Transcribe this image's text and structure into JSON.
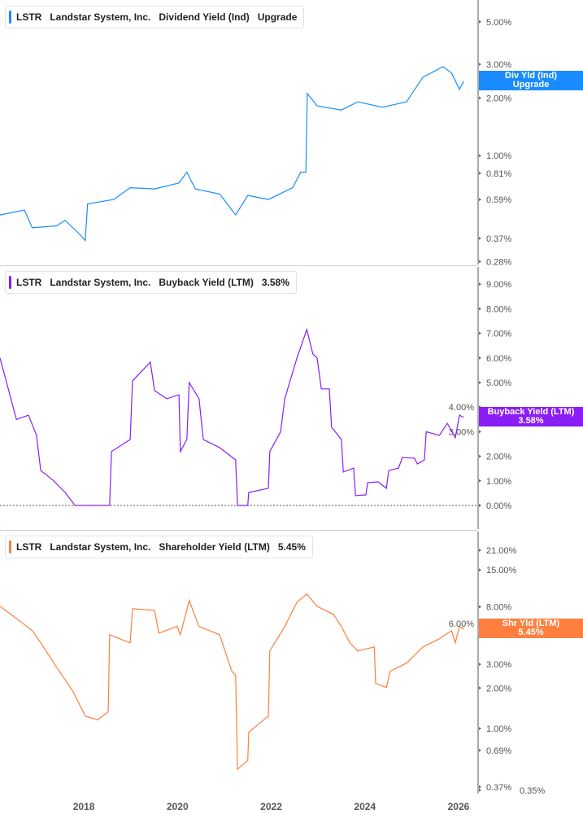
{
  "x_axis": {
    "ticks": [
      "2018",
      "2020",
      "2022",
      "2024",
      "2026"
    ],
    "tick_values": [
      2018,
      2020,
      2022,
      2024,
      2026
    ],
    "range": [
      2016.21,
      2026.4
    ]
  },
  "chart_data": [
    {
      "type": "line",
      "legend": {
        "ticker": "LSTR",
        "company": "Landstar System, Inc.",
        "metric": "Dividend Yield (Ind)",
        "value": "Upgrade"
      },
      "tag": {
        "line1": "Div Yld (Ind)",
        "line2": "Upgrade"
      },
      "color": "#1a8cff",
      "yscale": "log",
      "ylim": [
        0.27,
        6.5
      ],
      "yticks": [
        "5.00%",
        "3.00%",
        "2.00%",
        "1.00%",
        "0.81%",
        "0.59%",
        "0.37%",
        "0.28%"
      ],
      "ytick_values": [
        5,
        3,
        2,
        1,
        0.81,
        0.59,
        0.37,
        0.28
      ],
      "tag_value": 2.45,
      "x": [
        2016.21,
        2016.73,
        2016.9,
        2017.42,
        2017.6,
        2017.95,
        2018.03,
        2018.08,
        2018.64,
        2018.99,
        2019.51,
        2020.03,
        2020.2,
        2020.38,
        2020.9,
        2021.24,
        2021.5,
        2021.94,
        2022.46,
        2022.63,
        2022.74,
        2022.77,
        2022.98,
        2023.5,
        2023.85,
        2024.37,
        2024.89,
        2025.24,
        2025.67,
        2025.85,
        2026.02,
        2026.11
      ],
      "y": [
        0.49,
        0.52,
        0.42,
        0.43,
        0.46,
        0.38,
        0.36,
        0.56,
        0.59,
        0.68,
        0.67,
        0.72,
        0.82,
        0.67,
        0.63,
        0.49,
        0.62,
        0.59,
        0.68,
        0.82,
        0.82,
        2.11,
        1.82,
        1.73,
        1.91,
        1.79,
        1.91,
        2.57,
        2.92,
        2.7,
        2.22,
        2.45
      ]
    },
    {
      "type": "line",
      "legend": {
        "ticker": "LSTR",
        "company": "Landstar System, Inc.",
        "metric": "Buyback Yield (LTM)",
        "value": "3.58%"
      },
      "tag": {
        "line1": "Buyback Yield (LTM)",
        "line2": "3.58%"
      },
      "color": "#8a1ef5",
      "yscale": "linear",
      "ylim": [
        -0.96,
        9.7
      ],
      "yticks": [
        "9.00%",
        "8.00%",
        "7.00%",
        "6.00%",
        "5.00%",
        "4.00%",
        "3.00%",
        "2.00%",
        "1.00%",
        "0.00%"
      ],
      "ytick_values": [
        9,
        8,
        7,
        6,
        5,
        4,
        3,
        2,
        1,
        0
      ],
      "zero_line": true,
      "tag_value": 3.58,
      "x": [
        2016.21,
        2016.35,
        2016.56,
        2016.82,
        2016.99,
        2017.08,
        2017.34,
        2017.6,
        2017.81,
        2018.55,
        2018.59,
        2018.99,
        2019.04,
        2019.42,
        2019.51,
        2019.77,
        2020.03,
        2020.06,
        2020.2,
        2020.25,
        2020.46,
        2020.55,
        2020.9,
        2021.24,
        2021.28,
        2021.5,
        2021.52,
        2021.94,
        2021.97,
        2022.2,
        2022.29,
        2022.55,
        2022.76,
        2022.89,
        2022.98,
        2023.07,
        2023.24,
        2023.29,
        2023.5,
        2023.54,
        2023.76,
        2023.8,
        2024.02,
        2024.06,
        2024.28,
        2024.46,
        2024.51,
        2024.72,
        2024.8,
        2025.06,
        2025.12,
        2025.27,
        2025.31,
        2025.59,
        2025.76,
        2025.93,
        2026.02,
        2026.11
      ],
      "y": [
        6.0,
        5.0,
        3.5,
        3.67,
        2.85,
        1.42,
        1.03,
        0.53,
        0,
        0,
        2.19,
        2.68,
        5.07,
        5.83,
        4.67,
        4.34,
        4.5,
        2.19,
        2.68,
        5.0,
        4.34,
        2.68,
        2.35,
        1.85,
        0,
        0,
        0.53,
        0.7,
        2.19,
        3.0,
        4.34,
        6.0,
        7.15,
        6.16,
        6.0,
        4.74,
        4.74,
        3.18,
        2.68,
        1.36,
        1.52,
        0.4,
        0.43,
        0.93,
        0.96,
        0.7,
        1.42,
        1.52,
        1.95,
        1.92,
        1.69,
        1.85,
        3.0,
        2.85,
        3.34,
        2.75,
        3.67,
        3.58
      ]
    },
    {
      "type": "line",
      "legend": {
        "ticker": "LSTR",
        "company": "Landstar System, Inc.",
        "metric": "Shareholder Yield (LTM)",
        "value": "5.45%"
      },
      "tag": {
        "line1": "Shr Yld (LTM)",
        "line2": "5.45%"
      },
      "color": "#ff7f3f",
      "yscale": "log",
      "ylim": [
        0.33,
        28.9
      ],
      "yticks": [
        "21.00%",
        "15.00%",
        "8.00%",
        "6.00%",
        "3.00%",
        "2.00%",
        "1.00%",
        "0.69%",
        "0.37%",
        "0.35%"
      ],
      "ytick_values": [
        21,
        15,
        8,
        6,
        3,
        2,
        1,
        0.69,
        0.37,
        0.35
      ],
      "tag_value": 5.45,
      "x": [
        2016.21,
        2016.56,
        2016.9,
        2017.08,
        2017.42,
        2017.77,
        2018.03,
        2018.29,
        2018.52,
        2018.55,
        2018.99,
        2019.04,
        2019.51,
        2019.6,
        2019.99,
        2020.06,
        2020.25,
        2020.46,
        2020.9,
        2021.16,
        2021.24,
        2021.28,
        2021.5,
        2021.52,
        2021.94,
        2021.97,
        2022.29,
        2022.55,
        2022.76,
        2022.98,
        2023.33,
        2023.5,
        2023.68,
        2023.85,
        2024.2,
        2024.23,
        2024.46,
        2024.54,
        2024.89,
        2025.24,
        2025.59,
        2025.85,
        2025.93,
        2026.02,
        2026.11
      ],
      "y": [
        8.06,
        6.55,
        5.32,
        4.32,
        2.85,
        1.88,
        1.24,
        1.16,
        1.33,
        4.96,
        4.32,
        7.73,
        7.52,
        5.1,
        5.71,
        4.96,
        8.9,
        5.71,
        4.96,
        2.66,
        2.48,
        0.5,
        0.58,
        0.94,
        1.24,
        3.76,
        5.71,
        8.64,
        9.93,
        8.06,
        7.02,
        5.71,
        4.32,
        3.76,
        4.03,
        2.16,
        2.02,
        2.66,
        3.06,
        4.03,
        4.63,
        5.32,
        4.32,
        5.71,
        5.45
      ]
    }
  ]
}
